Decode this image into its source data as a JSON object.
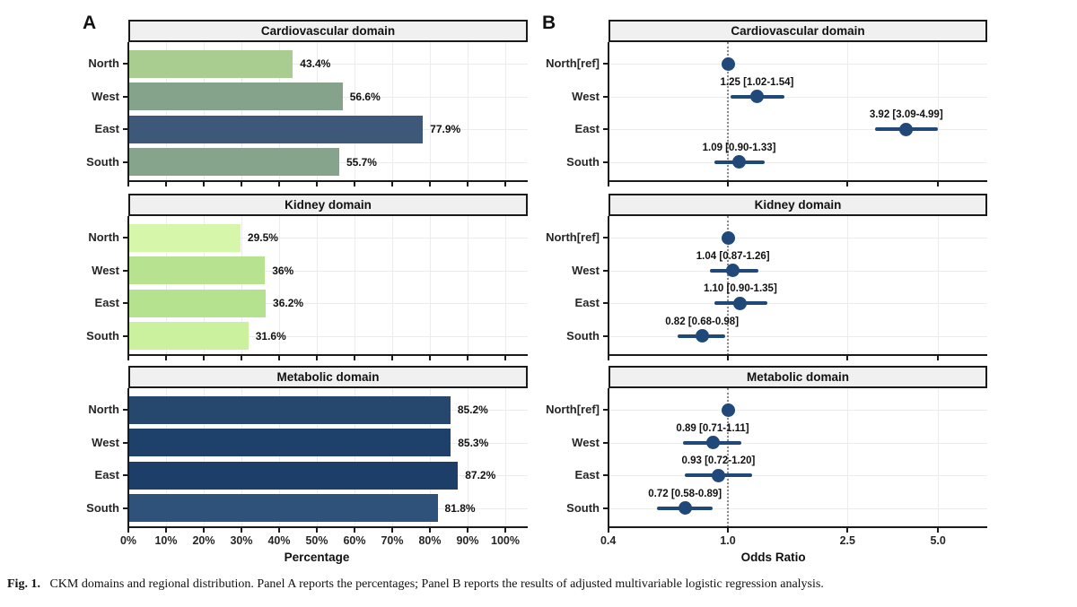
{
  "figure": {
    "panel_a_letter": "A",
    "panel_b_letter": "B"
  },
  "caption": {
    "prefix": "Fig. 1.",
    "text": "CKM domains and regional distribution. Panel A reports the percentages; Panel B reports the results of adjusted multivariable logistic regression analysis."
  },
  "colors": {
    "strip_bg": "#f0f0f0",
    "axis": "#1a1a1a",
    "grid": "#ececec",
    "forest_point": "#20497a",
    "ref_line": "#8a8a8a"
  },
  "chart_data": [
    {
      "type": "bar",
      "panel": "A",
      "title": "Cardiovascular domain",
      "categories": [
        "North",
        "West",
        "East",
        "South"
      ],
      "values": [
        43.4,
        56.6,
        77.9,
        55.7
      ],
      "value_labels": [
        "43.4%",
        "56.6%",
        "77.9%",
        "55.7%"
      ],
      "bar_colors": [
        "#a9cd90",
        "#85a28b",
        "#3d5878",
        "#86a48c"
      ],
      "xlabel": "Percentage",
      "xlim": [
        0,
        106
      ],
      "xticks": [
        0,
        10,
        20,
        30,
        40,
        50,
        60,
        70,
        80,
        90,
        100
      ],
      "xtick_labels": [
        "0%",
        "10%",
        "20%",
        "30%",
        "40%",
        "50%",
        "60%",
        "70%",
        "80%",
        "90%",
        "100%"
      ],
      "grid": true,
      "legend": "none"
    },
    {
      "type": "bar",
      "panel": "A",
      "title": "Kidney domain",
      "categories": [
        "North",
        "West",
        "East",
        "South"
      ],
      "values": [
        29.5,
        36,
        36.2,
        31.6
      ],
      "value_labels": [
        "29.5%",
        "36%",
        "36.2%",
        "31.6%"
      ],
      "bar_colors": [
        "#d6f7a9",
        "#b7e391",
        "#b5e28f",
        "#cbf19e"
      ],
      "xlabel": "Percentage",
      "xlim": [
        0,
        106
      ],
      "xticks": [
        0,
        10,
        20,
        30,
        40,
        50,
        60,
        70,
        80,
        90,
        100
      ],
      "xtick_labels": [
        "0%",
        "10%",
        "20%",
        "30%",
        "40%",
        "50%",
        "60%",
        "70%",
        "80%",
        "90%",
        "100%"
      ],
      "grid": true,
      "legend": "none"
    },
    {
      "type": "bar",
      "panel": "A",
      "title": "Metabolic domain",
      "categories": [
        "North",
        "West",
        "East",
        "South"
      ],
      "values": [
        85.2,
        85.3,
        87.2,
        81.8
      ],
      "value_labels": [
        "85.2%",
        "85.3%",
        "87.2%",
        "81.8%"
      ],
      "bar_colors": [
        "#26486f",
        "#1e416b",
        "#1c3e68",
        "#2f527a"
      ],
      "xlabel": "Percentage",
      "xlim": [
        0,
        106
      ],
      "xticks": [
        0,
        10,
        20,
        30,
        40,
        50,
        60,
        70,
        80,
        90,
        100
      ],
      "xtick_labels": [
        "0%",
        "10%",
        "20%",
        "30%",
        "40%",
        "50%",
        "60%",
        "70%",
        "80%",
        "90%",
        "100%"
      ],
      "grid": true,
      "legend": "none"
    },
    {
      "type": "forest",
      "panel": "B",
      "title": "Cardiovascular domain",
      "categories": [
        "North[ref]",
        "West",
        "East",
        "South"
      ],
      "or": [
        1.0,
        1.25,
        3.92,
        1.09
      ],
      "ci_low": [
        null,
        1.02,
        3.09,
        0.9
      ],
      "ci_high": [
        null,
        1.54,
        4.99,
        1.33
      ],
      "point_labels": [
        "",
        "1.25 [1.02-1.54]",
        "3.92 [3.09-4.99]",
        "1.09 [0.90-1.33]"
      ],
      "xlabel": "Odds Ratio",
      "scale": "log10",
      "ref_line": 1.0,
      "xticks": [
        0.4,
        1.0,
        2.5,
        5.0
      ],
      "xtick_labels": [
        "0.4",
        "1.0",
        "2.5",
        "5.0"
      ],
      "grid": true,
      "legend": "none"
    },
    {
      "type": "forest",
      "panel": "B",
      "title": "Kidney domain",
      "categories": [
        "North[ref]",
        "West",
        "East",
        "South"
      ],
      "or": [
        1.0,
        1.04,
        1.1,
        0.82
      ],
      "ci_low": [
        null,
        0.87,
        0.9,
        0.68
      ],
      "ci_high": [
        null,
        1.26,
        1.35,
        0.98
      ],
      "point_labels": [
        "",
        "1.04 [0.87-1.26]",
        "1.10 [0.90-1.35]",
        "0.82 [0.68-0.98]"
      ],
      "xlabel": "Odds Ratio",
      "scale": "log10",
      "ref_line": 1.0,
      "xticks": [
        0.4,
        1.0,
        2.5,
        5.0
      ],
      "xtick_labels": [
        "0.4",
        "1.0",
        "2.5",
        "5.0"
      ],
      "grid": true,
      "legend": "none"
    },
    {
      "type": "forest",
      "panel": "B",
      "title": "Metabolic domain",
      "categories": [
        "North[ref]",
        "West",
        "East",
        "South"
      ],
      "or": [
        1.0,
        0.89,
        0.93,
        0.72
      ],
      "ci_low": [
        null,
        0.71,
        0.72,
        0.58
      ],
      "ci_high": [
        null,
        1.11,
        1.2,
        0.89
      ],
      "point_labels": [
        "",
        "0.89 [0.71-1.11]",
        "0.93 [0.72-1.20]",
        "0.72 [0.58-0.89]"
      ],
      "xlabel": "Odds Ratio",
      "scale": "log10",
      "ref_line": 1.0,
      "xticks": [
        0.4,
        1.0,
        2.5,
        5.0
      ],
      "xtick_labels": [
        "0.4",
        "1.0",
        "2.5",
        "5.0"
      ],
      "grid": true,
      "legend": "none"
    }
  ]
}
